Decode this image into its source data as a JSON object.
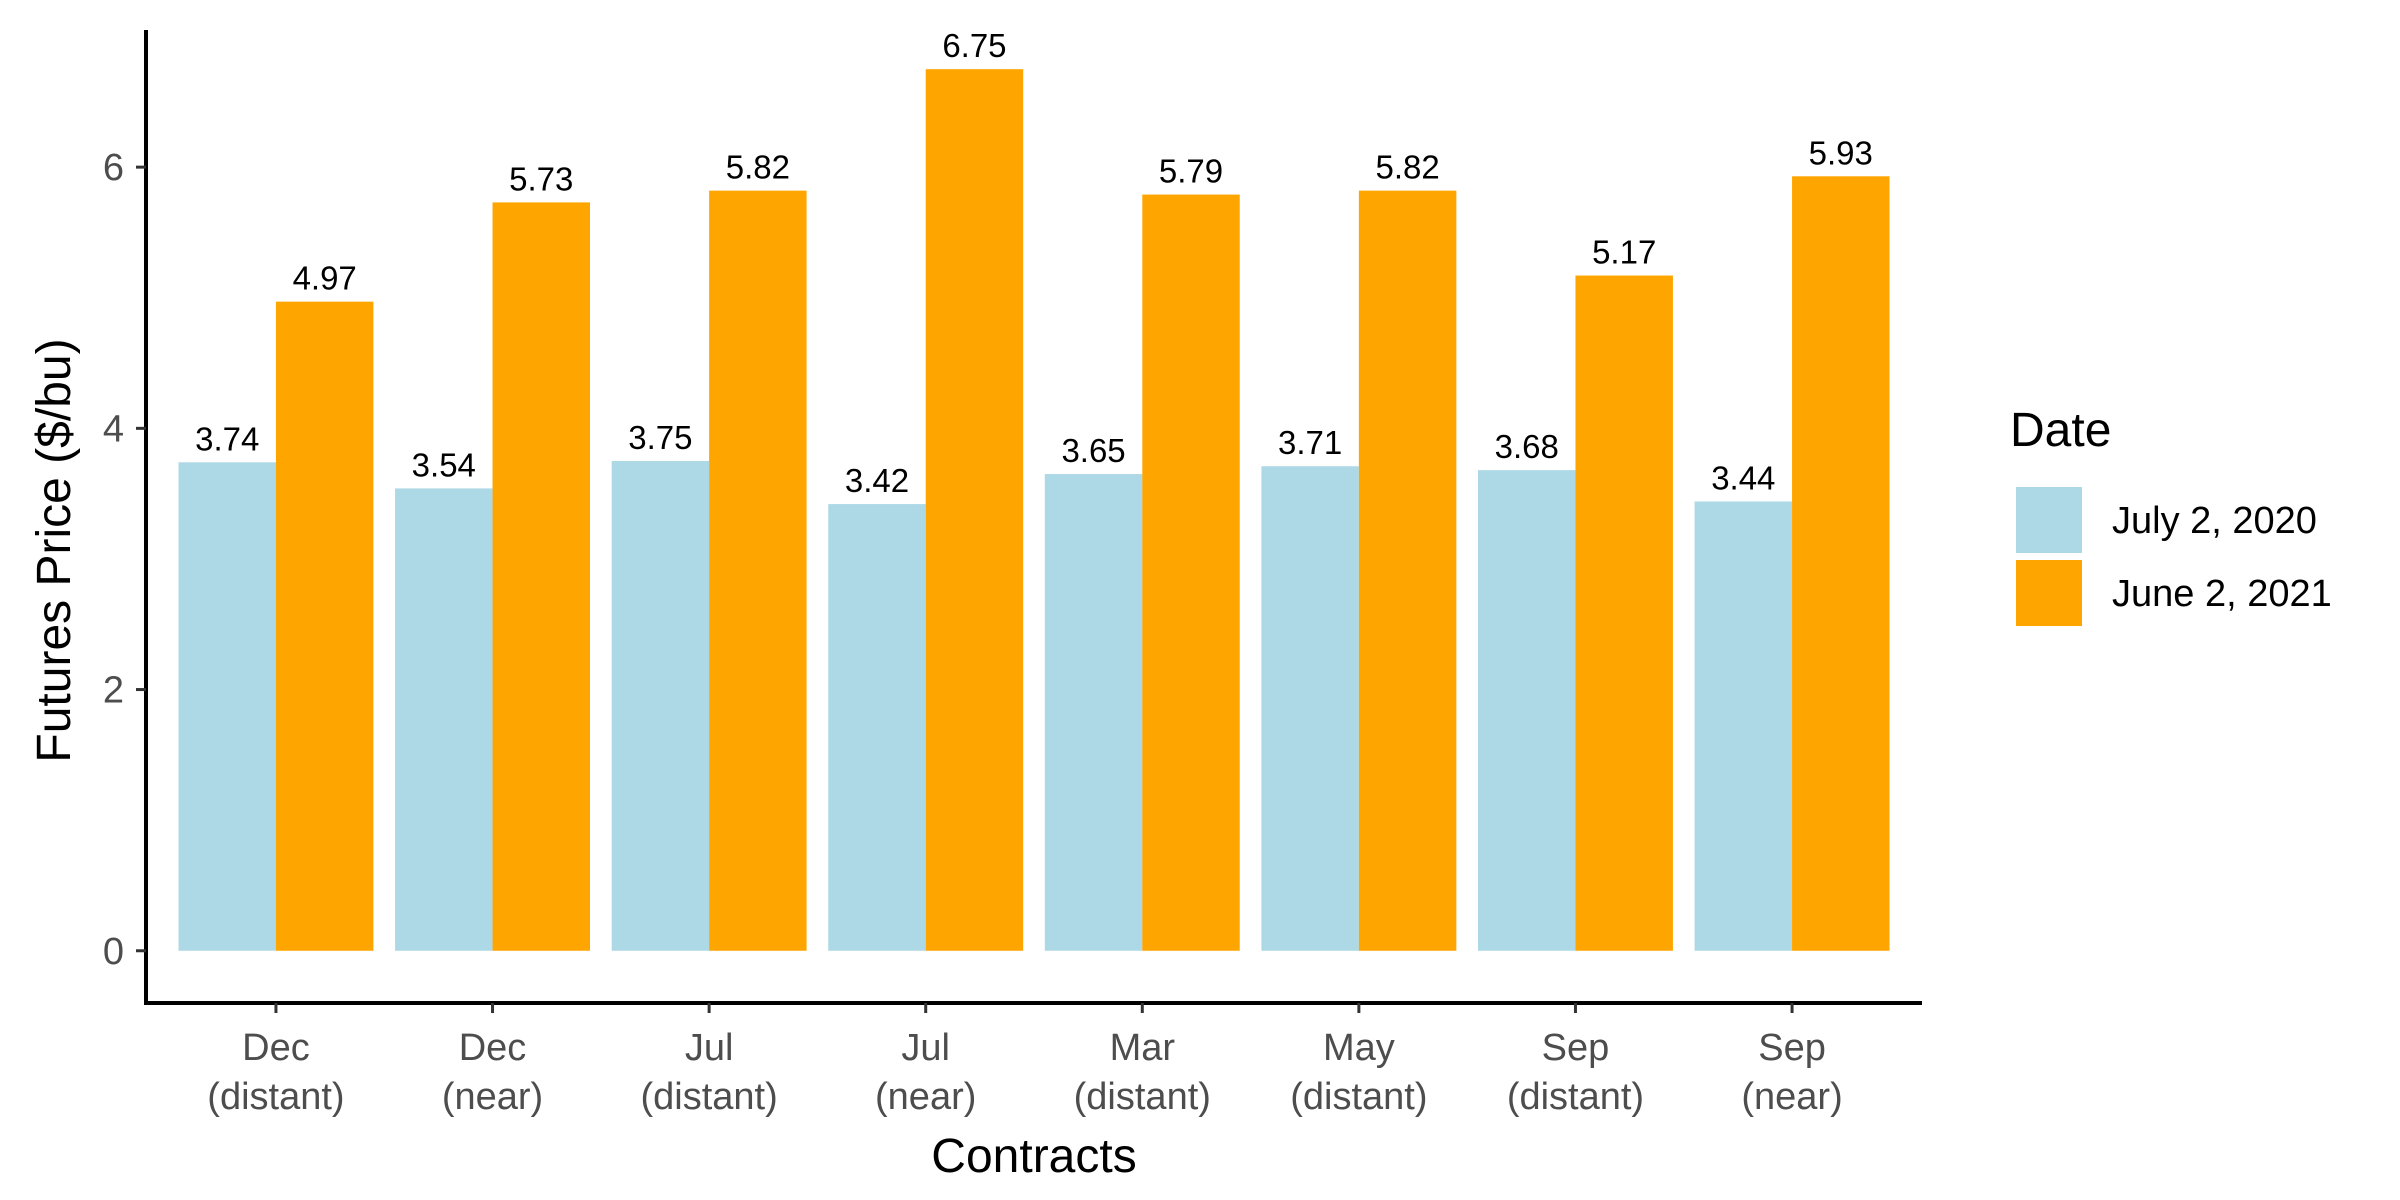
{
  "chart_data": {
    "type": "bar",
    "categories": [
      [
        "Dec",
        "(distant)"
      ],
      [
        "Dec",
        "(near)"
      ],
      [
        "Jul",
        "(distant)"
      ],
      [
        "Jul",
        "(near)"
      ],
      [
        "Mar",
        "(distant)"
      ],
      [
        "May",
        "(distant)"
      ],
      [
        "Sep",
        "(distant)"
      ],
      [
        "Sep",
        "(near)"
      ]
    ],
    "series": [
      {
        "name": "July 2, 2020",
        "color": "#add8e6",
        "values": [
          3.74,
          3.54,
          3.75,
          3.42,
          3.65,
          3.71,
          3.68,
          3.44
        ],
        "labels": [
          "3.74",
          "3.54",
          "3.75",
          "3.42",
          "3.65",
          "3.71",
          "3.68",
          "3.44"
        ]
      },
      {
        "name": "June 2, 2021",
        "color": "#ffa500",
        "values": [
          4.97,
          5.73,
          5.82,
          6.75,
          5.79,
          5.82,
          5.17,
          5.93
        ],
        "labels": [
          "4.97",
          "5.73",
          "5.82",
          "6.75",
          "5.79",
          "5.82",
          "5.17",
          "5.93"
        ]
      }
    ],
    "title": "",
    "xlabel": "Contracts",
    "ylabel": "Futures Price ($/bu)",
    "ylim": [
      -0.4,
      7.05
    ],
    "yticks": [
      0,
      2,
      4,
      6
    ],
    "ytick_labels": [
      "0",
      "2",
      "4",
      "6"
    ],
    "grid": false,
    "legend": {
      "title": "Date",
      "placement": "right"
    }
  }
}
